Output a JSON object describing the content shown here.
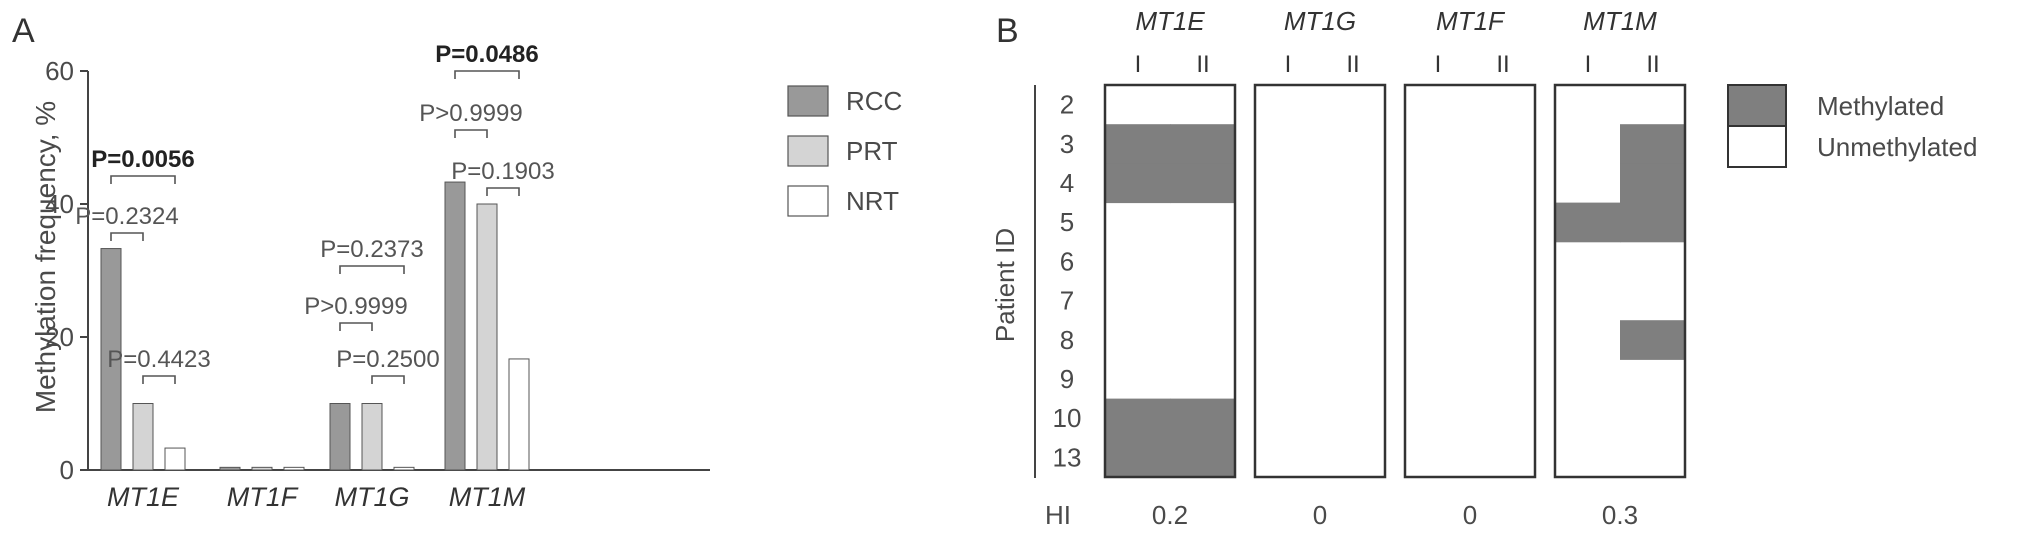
{
  "panel_a": {
    "label": "A",
    "chart_data": {
      "type": "bar",
      "ylabel": "Methylation frequency, %",
      "ylim": [
        0,
        60
      ],
      "yticks": [
        0,
        20,
        40,
        60
      ],
      "categories": [
        "MT1E",
        "MT1F",
        "MT1G",
        "MT1M"
      ],
      "series": [
        {
          "name": "RCC",
          "color": "#999999",
          "values": [
            33.3,
            0.4,
            10,
            43.3
          ]
        },
        {
          "name": "PRT",
          "color": "#d4d4d4",
          "values": [
            10,
            0.4,
            10,
            40
          ]
        },
        {
          "name": "NRT",
          "color": "#ffffff",
          "values": [
            3.3,
            0.4,
            0.4,
            16.7
          ]
        }
      ],
      "comparisons": [
        {
          "category": 0,
          "pair": [
            0,
            2
          ],
          "text": "P=0.0056",
          "bold": true
        },
        {
          "category": 0,
          "pair": [
            0,
            1
          ],
          "text": "P=0.2324",
          "bold": false
        },
        {
          "category": 0,
          "pair": [
            1,
            2
          ],
          "text": "P=0.4423",
          "bold": false
        },
        {
          "category": 2,
          "pair": [
            0,
            2
          ],
          "text": "P=0.2373",
          "bold": false
        },
        {
          "category": 2,
          "pair": [
            0,
            1
          ],
          "text": "P>0.9999",
          "bold": false
        },
        {
          "category": 2,
          "pair": [
            1,
            2
          ],
          "text": "P=0.2500",
          "bold": false
        },
        {
          "category": 3,
          "pair": [
            0,
            2
          ],
          "text": "P=0.0486",
          "bold": true
        },
        {
          "category": 3,
          "pair": [
            0,
            1
          ],
          "text": "P>0.9999",
          "bold": false
        },
        {
          "category": 3,
          "pair": [
            1,
            2
          ],
          "text": "P=0.1903",
          "bold": false
        }
      ],
      "legend_placement": "right"
    }
  },
  "panel_b": {
    "label": "B",
    "chart_data": {
      "type": "heatmap",
      "ylabel": "Patient ID",
      "patients": [
        "2",
        "3",
        "4",
        "5",
        "6",
        "7",
        "8",
        "9",
        "10",
        "13"
      ],
      "genes": [
        "MT1E",
        "MT1G",
        "MT1F",
        "MT1M"
      ],
      "columns": [
        "I",
        "II"
      ],
      "methylated": [
        [
          [
            0,
            0
          ],
          [
            1,
            1
          ],
          [
            1,
            1
          ],
          [
            0,
            0
          ],
          [
            0,
            0
          ],
          [
            0,
            0
          ],
          [
            0,
            0
          ],
          [
            0,
            0
          ],
          [
            1,
            1
          ],
          [
            1,
            1
          ]
        ],
        [
          [
            0,
            0
          ],
          [
            0,
            0
          ],
          [
            0,
            0
          ],
          [
            0,
            0
          ],
          [
            0,
            0
          ],
          [
            0,
            0
          ],
          [
            0,
            0
          ],
          [
            0,
            0
          ],
          [
            0,
            0
          ],
          [
            0,
            0
          ]
        ],
        [
          [
            0,
            0
          ],
          [
            0,
            0
          ],
          [
            0,
            0
          ],
          [
            0,
            0
          ],
          [
            0,
            0
          ],
          [
            0,
            0
          ],
          [
            0,
            0
          ],
          [
            0,
            0
          ],
          [
            0,
            0
          ],
          [
            0,
            0
          ]
        ],
        [
          [
            0,
            0
          ],
          [
            0,
            1
          ],
          [
            0,
            1
          ],
          [
            1,
            1
          ],
          [
            0,
            0
          ],
          [
            0,
            0
          ],
          [
            0,
            1
          ],
          [
            0,
            0
          ],
          [
            0,
            0
          ],
          [
            0,
            0
          ]
        ]
      ],
      "hi_label": "HI",
      "hi_values": [
        "0.2",
        "0",
        "0",
        "0.3"
      ],
      "legend": [
        {
          "name": "Methylated",
          "color": "#7f7f7f"
        },
        {
          "name": "Unmethylated",
          "color": "#ffffff"
        }
      ]
    }
  }
}
